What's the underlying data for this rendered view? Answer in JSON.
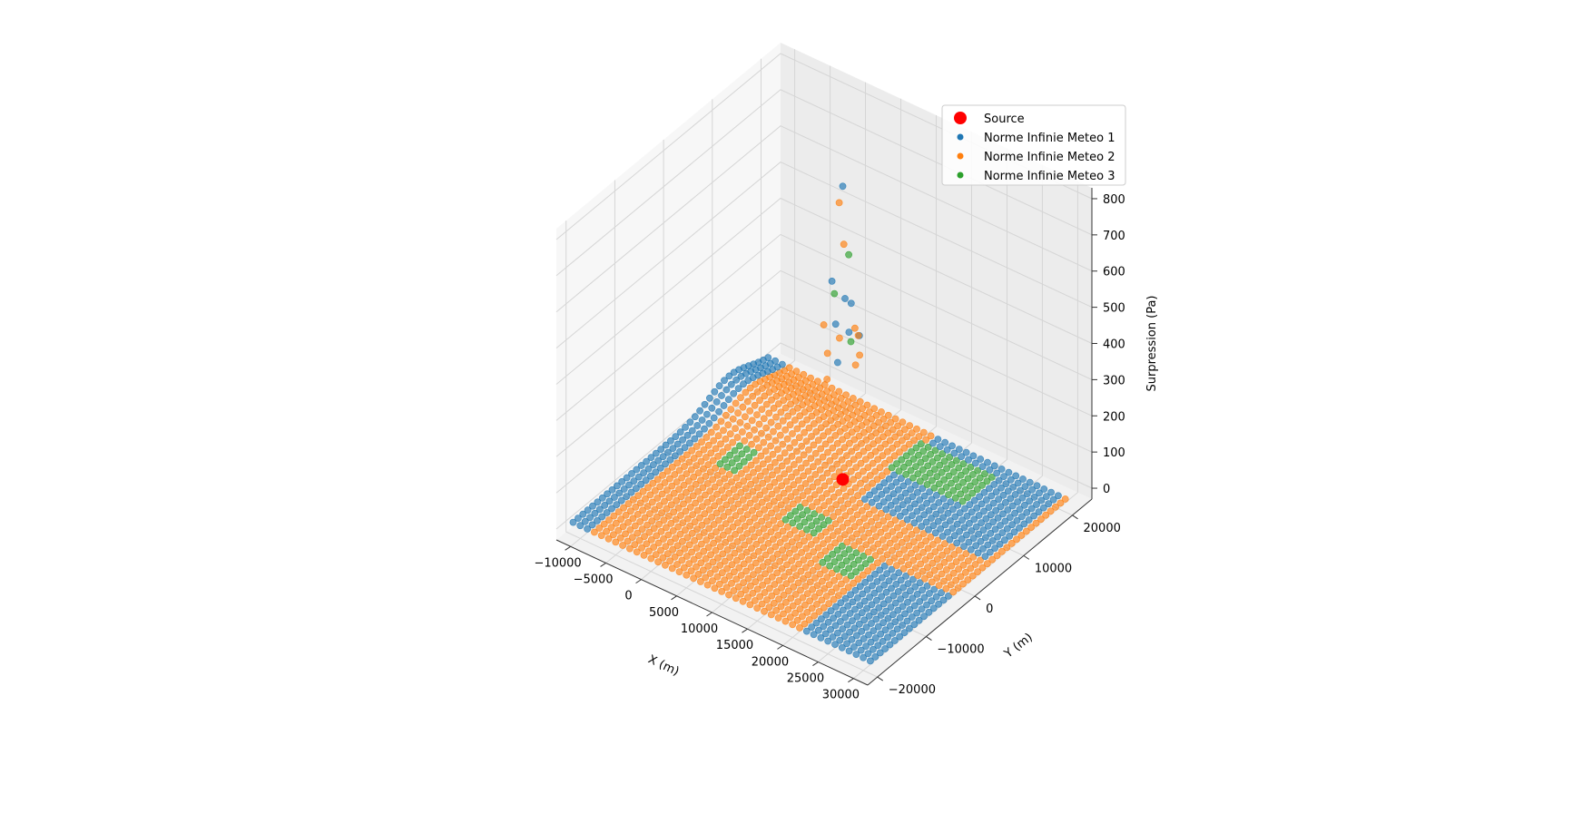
{
  "chart_data": {
    "type": "scatter",
    "projection": "3d",
    "title": "",
    "xlabel": "X (m)",
    "ylabel": "Y (m)",
    "zlabel": "Surpression (Pa)",
    "xlim": [
      -12000,
      32000
    ],
    "ylim": [
      -22000,
      24000
    ],
    "zlim": [
      -30,
      830
    ],
    "xticks": [
      -10000,
      -5000,
      0,
      5000,
      10000,
      15000,
      20000,
      25000,
      30000
    ],
    "yticks": [
      -20000,
      -10000,
      0,
      10000,
      20000
    ],
    "zticks": [
      0,
      100,
      200,
      300,
      400,
      500,
      600,
      700,
      800
    ],
    "xtick_labels": [
      "−10000",
      "−5000",
      "0",
      "5000",
      "10000",
      "15000",
      "20000",
      "25000",
      "30000"
    ],
    "ytick_labels": [
      "−20000",
      "−10000",
      "0",
      "10000",
      "20000"
    ],
    "ztick_labels": [
      "0",
      "100",
      "200",
      "300",
      "400",
      "500",
      "600",
      "700",
      "800"
    ],
    "grid": true,
    "legend_position": "top-right",
    "source": {
      "name": "Source",
      "x": 8500,
      "y": 7000,
      "z": 0,
      "color": "#ff0000"
    },
    "grid_step": 1000,
    "series": [
      {
        "name": "Norme Infinie Meteo 1",
        "color": "#1f77b4",
        "regions": [
          {
            "x": [
              -11000,
              -9000
            ],
            "y": [
              -20000,
              20000
            ]
          },
          {
            "x": [
              22000,
              31000
            ],
            "y": [
              -20000,
              -4000
            ]
          },
          {
            "x": [
              13000,
              30000
            ],
            "y": [
              5000,
              20000
            ]
          }
        ],
        "peak": [
          {
            "x": 8500,
            "y": 7000,
            "z": 810
          },
          {
            "x": 8000,
            "y": 5500,
            "z": 560
          },
          {
            "x": 9500,
            "y": 6000,
            "z": 520
          },
          {
            "x": 9000,
            "y": 8000,
            "z": 480
          },
          {
            "x": 7500,
            "y": 7000,
            "z": 420
          },
          {
            "x": 10500,
            "y": 7500,
            "z": 410
          },
          {
            "x": 8000,
            "y": 9000,
            "z": 380
          },
          {
            "x": 9500,
            "y": 4500,
            "z": 360
          }
        ]
      },
      {
        "name": "Norme Infinie Meteo 2",
        "color": "#ff7f0e",
        "regions": [
          {
            "x": [
              -8000,
              31000
            ],
            "y": [
              -20000,
              20000
            ]
          }
        ],
        "peak": [
          {
            "x": 8000,
            "y": 7000,
            "z": 760
          },
          {
            "x": 9000,
            "y": 6500,
            "z": 660
          },
          {
            "x": 6500,
            "y": 6000,
            "z": 420
          },
          {
            "x": 10000,
            "y": 8000,
            "z": 400
          },
          {
            "x": 8500,
            "y": 9500,
            "z": 390
          },
          {
            "x": 7000,
            "y": 8500,
            "z": 360
          },
          {
            "x": 11000,
            "y": 6000,
            "z": 350
          },
          {
            "x": 9500,
            "y": 9000,
            "z": 330
          },
          {
            "x": 6000,
            "y": 7500,
            "z": 320
          },
          {
            "x": 8000,
            "y": 4500,
            "z": 300
          }
        ]
      },
      {
        "name": "Norme Infinie Meteo 3",
        "color": "#2ca02c",
        "regions": [
          {
            "x": [
              -4000,
              -2000
            ],
            "y": [
              0,
              4000
            ]
          },
          {
            "x": [
              8000,
              12000
            ],
            "y": [
              -4000,
              -1000
            ]
          },
          {
            "x": [
              16000,
              20000
            ],
            "y": [
              -8000,
              -4000
            ]
          },
          {
            "x": [
              12000,
              22000
            ],
            "y": [
              12000,
              18000
            ]
          }
        ],
        "peak": [
          {
            "x": 9000,
            "y": 7500,
            "z": 620
          },
          {
            "x": 8000,
            "y": 6000,
            "z": 520
          },
          {
            "x": 10000,
            "y": 6500,
            "z": 400
          }
        ]
      }
    ]
  }
}
